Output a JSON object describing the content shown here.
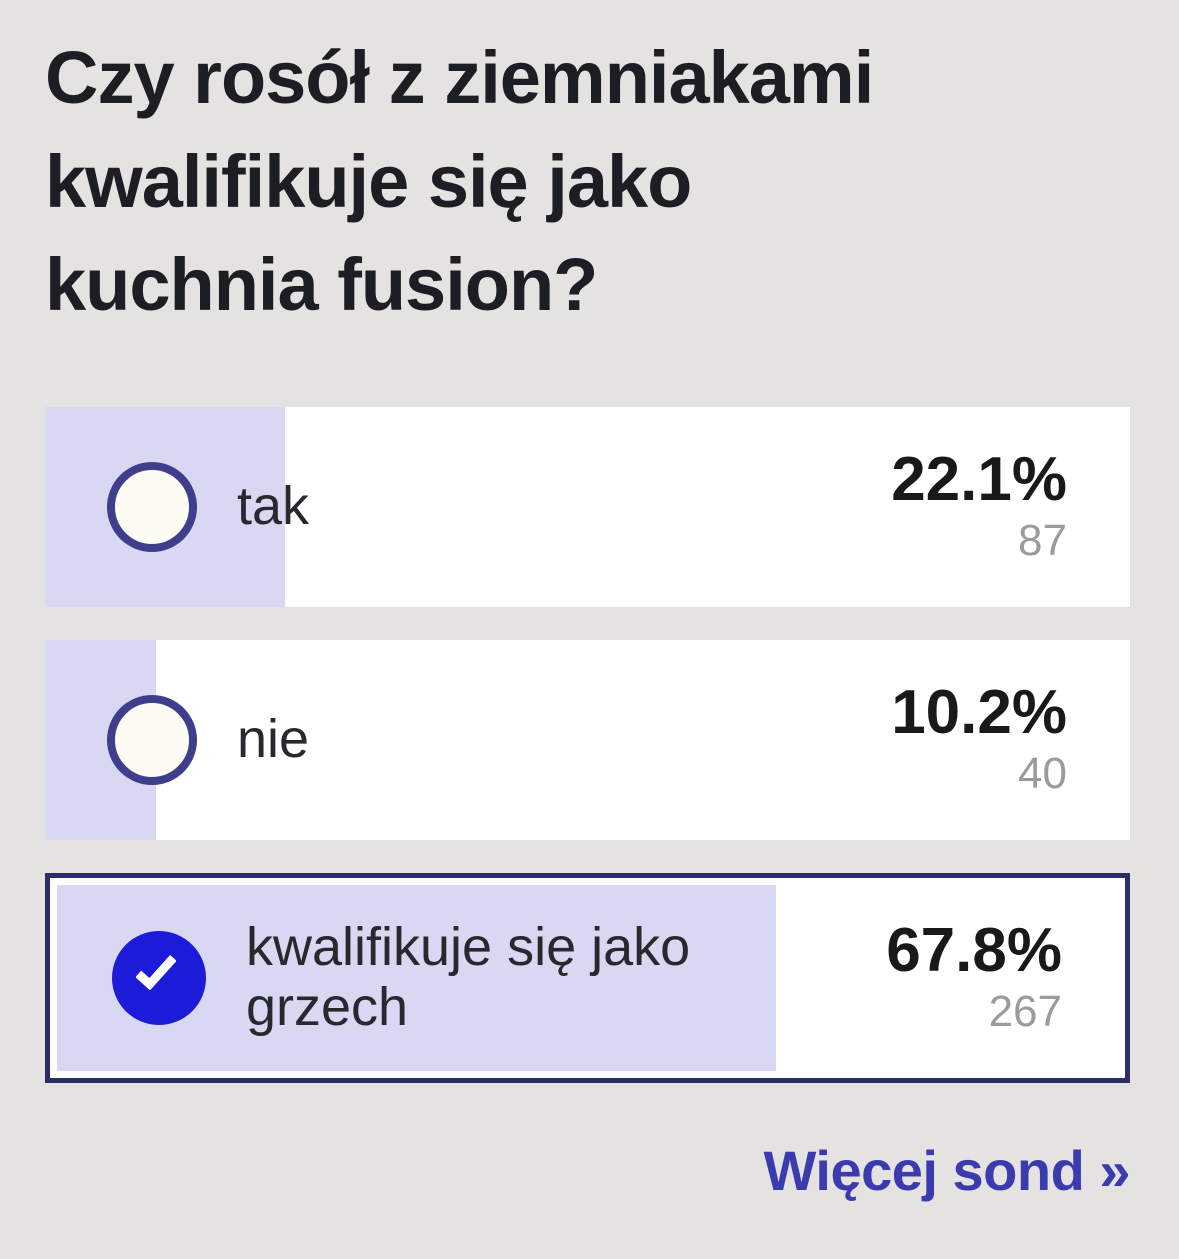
{
  "page": {
    "background": "#e4e3e1",
    "accent_purple": "#d9d8f2",
    "radio_border": "#3e3e8c",
    "selected_blue": "#1b1bd8",
    "selected_row_border": "#2d2d66",
    "link_color": "#3b3baf"
  },
  "poll": {
    "title": "Czy rosół z ziemniakami kwalifikuje się jako kuchnia fusion?",
    "title_lines": [
      "Czy rosół z ziemniakami",
      "kwalifikuje się jako",
      "kuchnia fusion?"
    ],
    "options": [
      {
        "label": "tak",
        "percent": 22.1,
        "percent_label": "22.1%",
        "votes": "87",
        "selected": false
      },
      {
        "label": "nie",
        "percent": 10.2,
        "percent_label": "10.2%",
        "votes": "40",
        "selected": false
      },
      {
        "label": "kwalifikuje się jako grzech",
        "percent": 67.8,
        "percent_label": "67.8%",
        "votes": "267",
        "selected": true
      }
    ],
    "more_link": "Więcej sond »"
  }
}
